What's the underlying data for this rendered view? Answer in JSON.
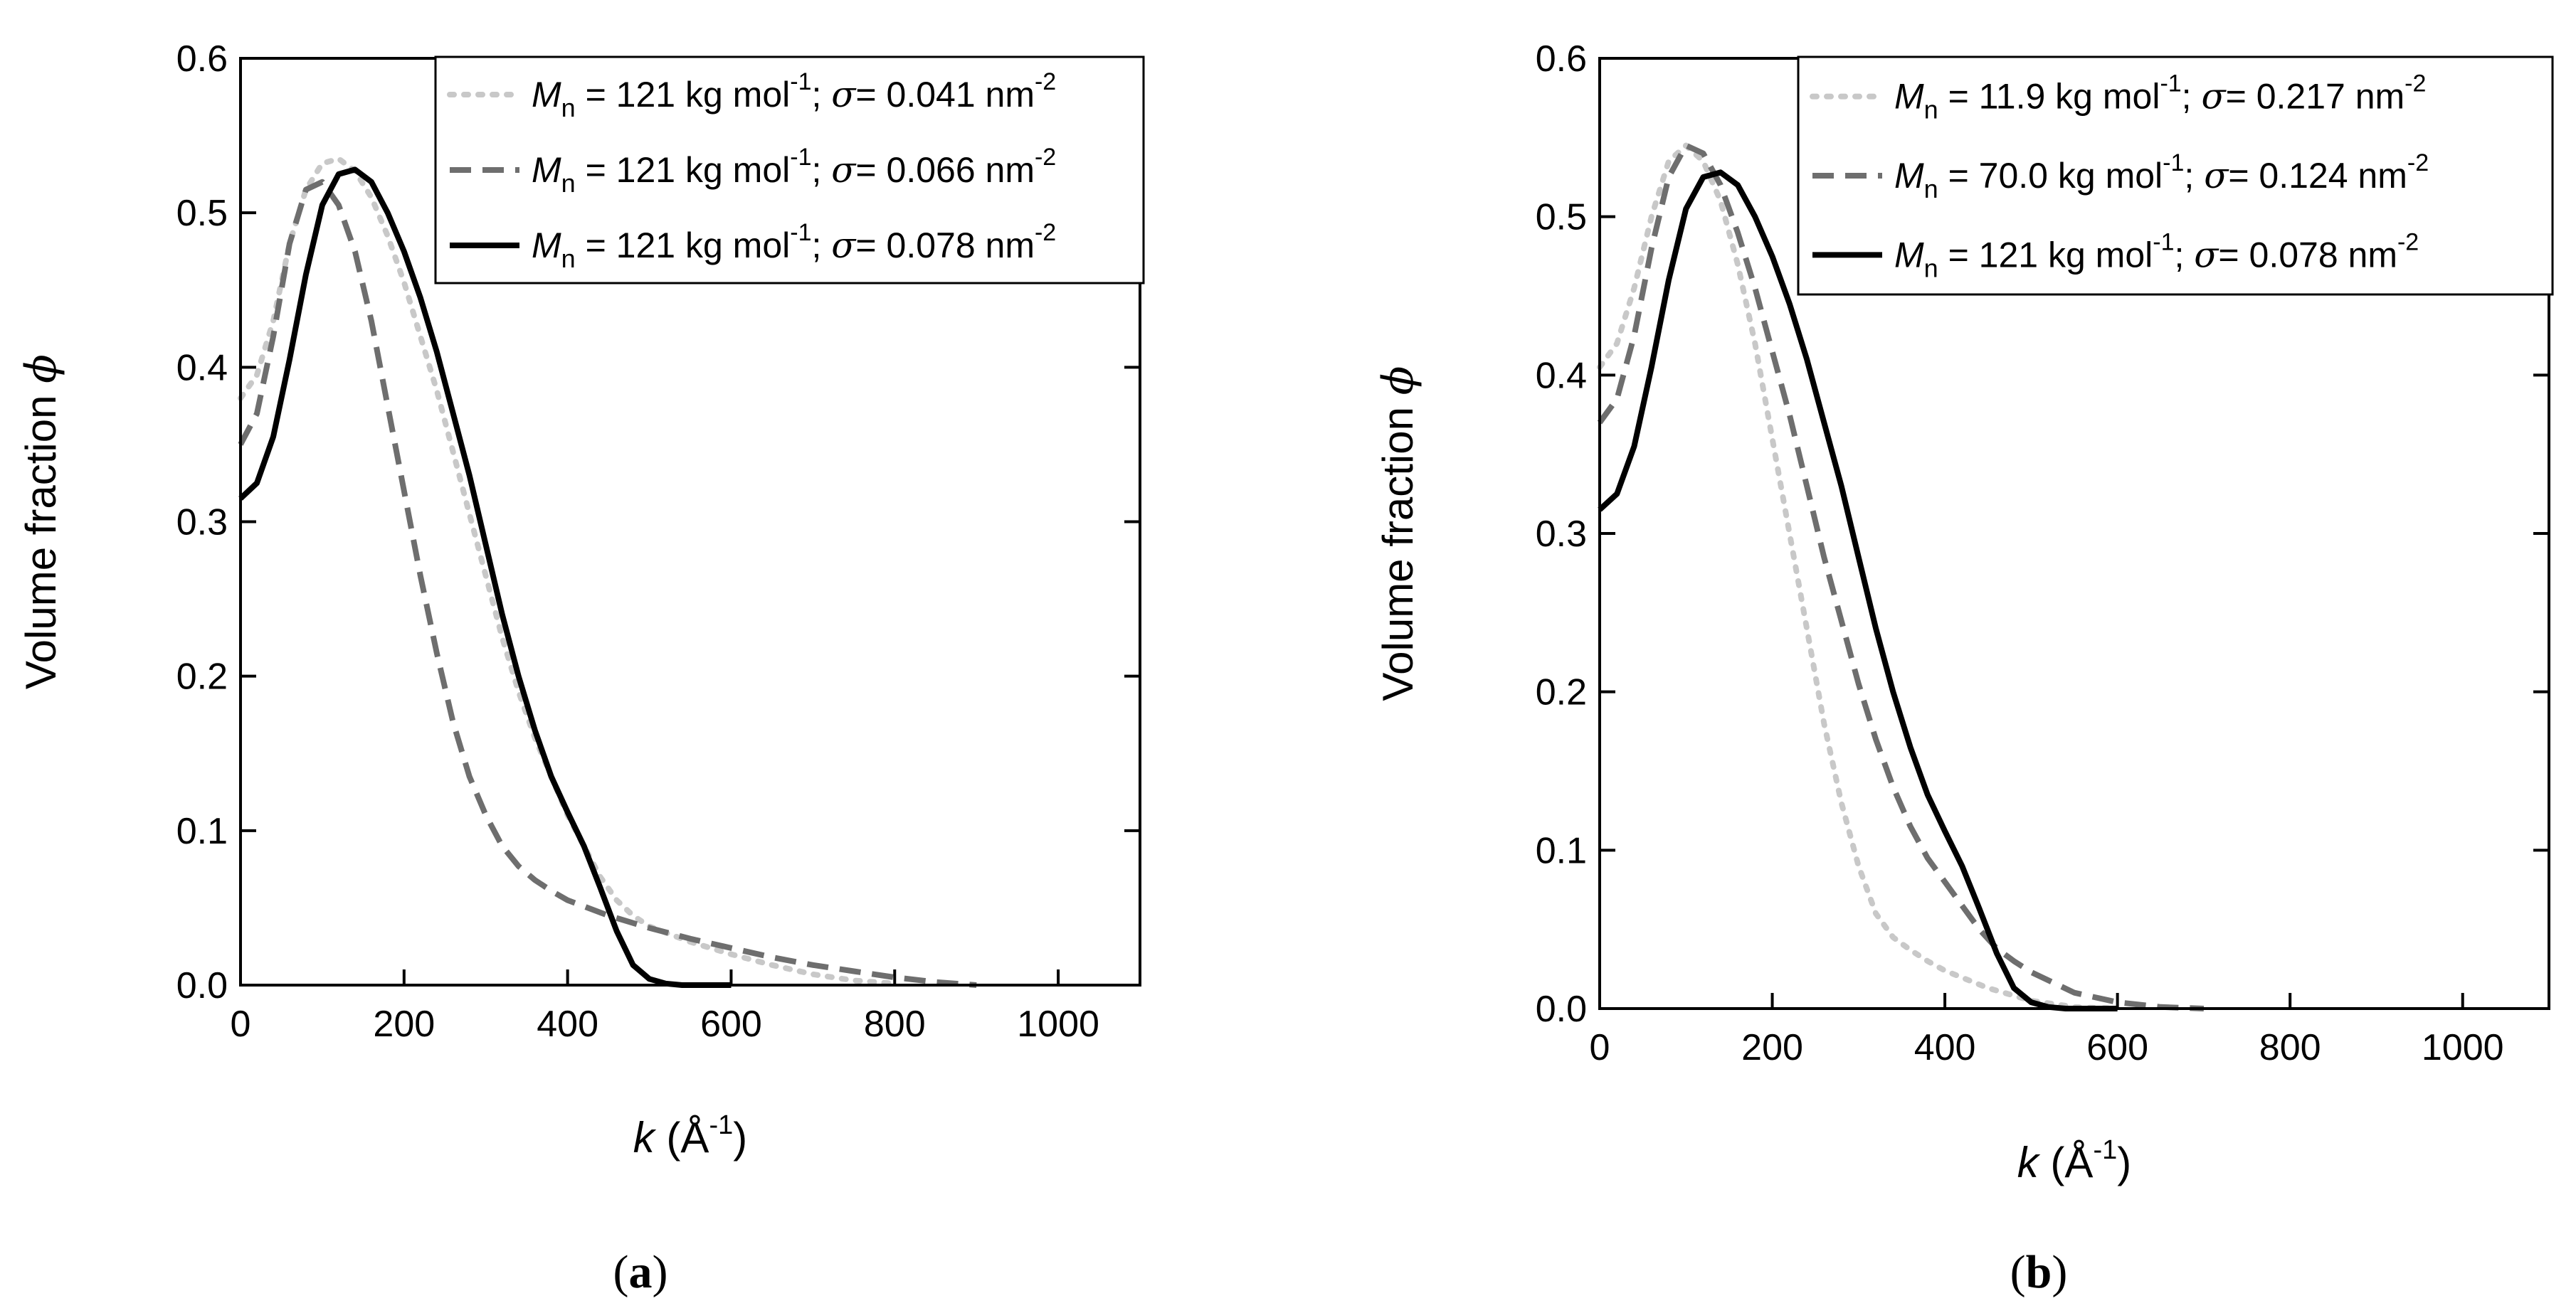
{
  "chart_data": [
    {
      "type": "line",
      "panel": "a",
      "caption": {
        "open": "(",
        "letter": "a",
        "close": ")"
      },
      "xlabel": {
        "var": "k",
        "unit_open": " (Å",
        "unit_sup": "-1",
        "unit_close": ")"
      },
      "ylabel": {
        "text": "Volume fraction ",
        "var": "ϕ"
      },
      "xlim": [
        0,
        1100
      ],
      "ylim": [
        0,
        0.6
      ],
      "xticks": [
        0,
        200,
        400,
        600,
        800,
        1000
      ],
      "yticks": [
        0.0,
        0.1,
        0.2,
        0.3,
        0.4,
        0.5,
        0.6
      ],
      "xtick_labels": [
        "0",
        "200",
        "400",
        "600",
        "800",
        "1000"
      ],
      "ytick_labels": [
        "0.0",
        "0.1",
        "0.2",
        "0.3",
        "0.4",
        "0.5",
        "0.6"
      ],
      "legend_position": "top-right",
      "series": [
        {
          "key": "s1",
          "style": "dotted",
          "color": "#c8c8c8",
          "legend": {
            "var": "M",
            "sub": "n",
            "mid": " = 121 kg mol",
            "sup1": "-1",
            "semi": "; ",
            "sym": "σ",
            "val": "= 0.041 nm",
            "sup2": "-2"
          },
          "x": [
            0,
            20,
            40,
            60,
            80,
            100,
            120,
            140,
            160,
            180,
            200,
            220,
            240,
            260,
            280,
            300,
            320,
            340,
            360,
            380,
            400,
            420,
            440,
            460,
            480,
            500,
            550,
            600,
            650,
            700,
            750,
            800
          ],
          "y": [
            0.38,
            0.395,
            0.43,
            0.48,
            0.515,
            0.532,
            0.535,
            0.527,
            0.51,
            0.485,
            0.455,
            0.42,
            0.385,
            0.345,
            0.305,
            0.265,
            0.225,
            0.19,
            0.16,
            0.135,
            0.11,
            0.09,
            0.07,
            0.055,
            0.045,
            0.038,
            0.028,
            0.02,
            0.013,
            0.007,
            0.003,
            0.001
          ]
        },
        {
          "key": "s2",
          "style": "dashed",
          "color": "#6e6e6e",
          "legend": {
            "var": "M",
            "sub": "n",
            "mid": " = 121 kg mol",
            "sup1": "-1",
            "semi": "; ",
            "sym": "σ",
            "val": "= 0.066 nm",
            "sup2": "-2"
          },
          "x": [
            0,
            20,
            40,
            60,
            80,
            100,
            120,
            140,
            160,
            180,
            200,
            220,
            240,
            260,
            280,
            300,
            320,
            340,
            360,
            380,
            400,
            450,
            500,
            550,
            600,
            650,
            700,
            750,
            800,
            850,
            900
          ],
          "y": [
            0.35,
            0.37,
            0.42,
            0.48,
            0.515,
            0.52,
            0.505,
            0.475,
            0.43,
            0.375,
            0.32,
            0.265,
            0.215,
            0.17,
            0.135,
            0.11,
            0.09,
            0.077,
            0.068,
            0.061,
            0.055,
            0.045,
            0.037,
            0.03,
            0.024,
            0.018,
            0.013,
            0.009,
            0.005,
            0.002,
            0.0
          ]
        },
        {
          "key": "s3",
          "style": "solid",
          "color": "#000000",
          "legend": {
            "var": "M",
            "sub": "n",
            "mid": " = 121 kg mol",
            "sup1": "-1",
            "semi": "; ",
            "sym": "σ",
            "val": "= 0.078 nm",
            "sup2": "-2"
          },
          "x": [
            0,
            20,
            40,
            60,
            80,
            100,
            120,
            140,
            160,
            180,
            200,
            220,
            240,
            260,
            280,
            300,
            320,
            340,
            360,
            380,
            400,
            420,
            440,
            460,
            480,
            500,
            520,
            540,
            560,
            600
          ],
          "y": [
            0.315,
            0.325,
            0.355,
            0.405,
            0.46,
            0.505,
            0.525,
            0.528,
            0.52,
            0.5,
            0.475,
            0.445,
            0.41,
            0.37,
            0.33,
            0.285,
            0.24,
            0.2,
            0.165,
            0.135,
            0.112,
            0.09,
            0.063,
            0.035,
            0.013,
            0.004,
            0.001,
            0.0,
            0.0,
            0.0
          ]
        }
      ]
    },
    {
      "type": "line",
      "panel": "b",
      "caption": {
        "open": "(",
        "letter": "b",
        "close": ")"
      },
      "xlabel": {
        "var": "k",
        "unit_open": " (Å",
        "unit_sup": "-1",
        "unit_close": ")"
      },
      "ylabel": {
        "text": "Volume fraction ",
        "var": "ϕ"
      },
      "xlim": [
        0,
        1100
      ],
      "ylim": [
        0,
        0.6
      ],
      "xticks": [
        0,
        200,
        400,
        600,
        800,
        1000
      ],
      "yticks": [
        0.0,
        0.1,
        0.2,
        0.3,
        0.4,
        0.5,
        0.6
      ],
      "xtick_labels": [
        "0",
        "200",
        "400",
        "600",
        "800",
        "1000"
      ],
      "ytick_labels": [
        "0.0",
        "0.1",
        "0.2",
        "0.3",
        "0.4",
        "0.5",
        "0.6"
      ],
      "legend_position": "top-right",
      "series": [
        {
          "key": "s1",
          "style": "dotted",
          "color": "#c8c8c8",
          "legend": {
            "var": "M",
            "sub": "n",
            "mid": " = 11.9 kg mol",
            "sup1": "-1",
            "semi": "; ",
            "sym": "σ",
            "val": "= 0.217 nm",
            "sup2": "-2"
          },
          "x": [
            0,
            20,
            40,
            60,
            80,
            100,
            120,
            140,
            160,
            180,
            200,
            220,
            240,
            260,
            280,
            300,
            320,
            340,
            360,
            380,
            400,
            450,
            500,
            550,
            600
          ],
          "y": [
            0.405,
            0.42,
            0.455,
            0.5,
            0.535,
            0.545,
            0.535,
            0.51,
            0.47,
            0.42,
            0.36,
            0.3,
            0.24,
            0.18,
            0.13,
            0.09,
            0.06,
            0.045,
            0.037,
            0.03,
            0.024,
            0.013,
            0.005,
            0.001,
            0.0
          ]
        },
        {
          "key": "s2",
          "style": "dashed",
          "color": "#6e6e6e",
          "legend": {
            "var": "M",
            "sub": "n",
            "mid": " = 70.0 kg mol",
            "sup1": "-1",
            "semi": "; ",
            "sym": "σ",
            "val": "= 0.124 nm",
            "sup2": "-2"
          },
          "x": [
            0,
            20,
            40,
            60,
            80,
            100,
            120,
            140,
            160,
            180,
            200,
            220,
            240,
            260,
            280,
            300,
            320,
            340,
            360,
            380,
            400,
            420,
            440,
            460,
            480,
            500,
            550,
            600,
            650,
            700
          ],
          "y": [
            0.37,
            0.385,
            0.425,
            0.48,
            0.525,
            0.545,
            0.54,
            0.52,
            0.49,
            0.455,
            0.415,
            0.375,
            0.33,
            0.285,
            0.245,
            0.205,
            0.17,
            0.14,
            0.115,
            0.095,
            0.08,
            0.065,
            0.05,
            0.038,
            0.03,
            0.023,
            0.01,
            0.004,
            0.001,
            0.0
          ]
        },
        {
          "key": "s3",
          "style": "solid",
          "color": "#000000",
          "legend": {
            "var": "M",
            "sub": "n",
            "mid": " = 121 kg mol",
            "sup1": "-1",
            "semi": "; ",
            "sym": "σ",
            "val": "= 0.078 nm",
            "sup2": "-2"
          },
          "x": [
            0,
            20,
            40,
            60,
            80,
            100,
            120,
            140,
            160,
            180,
            200,
            220,
            240,
            260,
            280,
            300,
            320,
            340,
            360,
            380,
            400,
            420,
            440,
            460,
            480,
            500,
            520,
            540,
            560,
            600
          ],
          "y": [
            0.315,
            0.325,
            0.355,
            0.405,
            0.46,
            0.505,
            0.525,
            0.528,
            0.52,
            0.5,
            0.475,
            0.445,
            0.41,
            0.37,
            0.33,
            0.285,
            0.24,
            0.2,
            0.165,
            0.135,
            0.112,
            0.09,
            0.063,
            0.035,
            0.013,
            0.004,
            0.001,
            0.0,
            0.0,
            0.0
          ]
        }
      ]
    }
  ]
}
